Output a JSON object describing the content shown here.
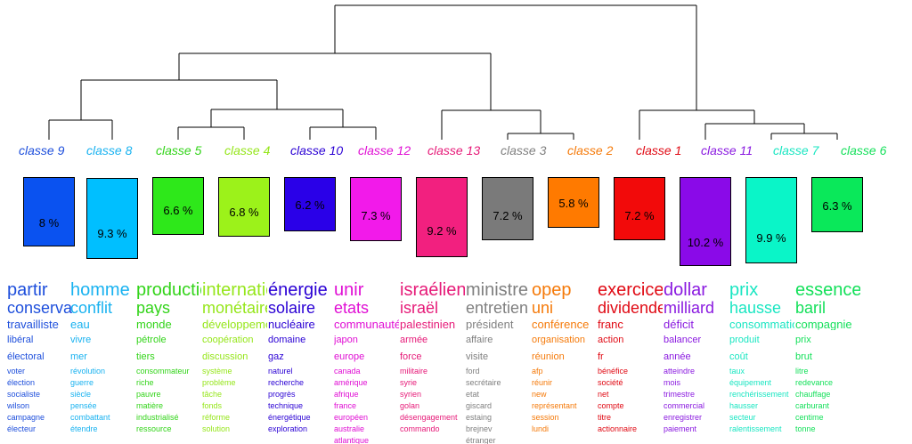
{
  "classes": [
    {
      "label": "classe  9",
      "color": "#1e4fdc",
      "percent": 8,
      "percent_label": "8 %",
      "bar_color": "#0a52f0",
      "words": [
        "partir",
        "conservateur",
        "travailliste",
        "libéral",
        "électoral",
        "voter",
        "élection",
        "socialiste",
        "wilson",
        "campagne",
        "électeur"
      ]
    },
    {
      "label": "classe  8",
      "color": "#19b2f0",
      "percent": 9.3,
      "percent_label": "9.3 %",
      "bar_color": "#00bfff",
      "words": [
        "homme",
        "conflit",
        "eau",
        "vivre",
        "mer",
        "révolution",
        "guerre",
        "siècle",
        "pensée",
        "combattant",
        "étendre"
      ]
    },
    {
      "label": "classe  5",
      "color": "#33d41a",
      "percent": 6.6,
      "percent_label": "6.6 %",
      "bar_color": "#2ee81a",
      "words": [
        "production",
        "pays",
        "monde",
        "pétrole",
        "tiers",
        "consommateur",
        "riche",
        "pauvre",
        "matière",
        "industrialisé",
        "ressource"
      ]
    },
    {
      "label": "classe  4",
      "color": "#95e61a",
      "percent": 6.8,
      "percent_label": "6.8 %",
      "bar_color": "#9cf21a",
      "words": [
        "international",
        "monétaire",
        "développement",
        "coopération",
        "discussion",
        "système",
        "problème",
        "tâche",
        "fonds",
        "réforme",
        "solution"
      ]
    },
    {
      "label": "classe  10",
      "color": "#2a00d4",
      "percent": 6.2,
      "percent_label": "6.2 %",
      "bar_color": "#2a00e8",
      "words": [
        "énergie",
        "solaire",
        "nucléaire",
        "domaine",
        "gaz",
        "naturel",
        "recherche",
        "progrès",
        "technique",
        "énergétique",
        "exploration"
      ]
    },
    {
      "label": "classe  12",
      "color": "#e00fd4",
      "percent": 7.3,
      "percent_label": "7.3 %",
      "bar_color": "#f21aea",
      "words": [
        "unir",
        "etats",
        "communauté",
        "japon",
        "europe",
        "canada",
        "amérique",
        "afrique",
        "france",
        "européen",
        "australie",
        "atlantique"
      ]
    },
    {
      "label": "classe  13",
      "color": "#e61a78",
      "percent": 9.2,
      "percent_label": "9.2 %",
      "bar_color": "#f2207f",
      "words": [
        "israélien",
        "israël",
        "palestinien",
        "armée",
        "force",
        "militaire",
        "syrie",
        "syrien",
        "golan",
        "désengagement",
        "commando"
      ]
    },
    {
      "label": "classe  3",
      "color": "#808080",
      "percent": 7.2,
      "percent_label": "7.2 %",
      "bar_color": "#7a7a7a",
      "words": [
        "ministre",
        "entretien",
        "président",
        "affaire",
        "visite",
        "ford",
        "secrétaire",
        "etat",
        "giscard",
        "estaing",
        "brejnev",
        "étranger"
      ]
    },
    {
      "label": "classe  2",
      "color": "#f57a0a",
      "percent": 5.8,
      "percent_label": "5.8 %",
      "bar_color": "#ff7a00",
      "words": [
        "opep",
        "uni",
        "conférence",
        "organisation",
        "réunion",
        "afp",
        "réunir",
        "new",
        "représentant",
        "session",
        "lundi"
      ]
    },
    {
      "label": "classe  1",
      "color": "#e00a14",
      "percent": 7.2,
      "percent_label": "7.2 %",
      "bar_color": "#f20a0a",
      "words": [
        "exercice",
        "dividende",
        "franc",
        "action",
        "fr",
        "bénéfice",
        "société",
        "net",
        "compte",
        "titre",
        "actionnaire"
      ]
    },
    {
      "label": "classe  11",
      "color": "#8a1ae0",
      "percent": 10.2,
      "percent_label": "10.2 %",
      "bar_color": "#8a0ae8",
      "words": [
        "dollar",
        "milliard",
        "déficit",
        "balancer",
        "année",
        "atteindre",
        "mois",
        "trimestre",
        "commercial",
        "enregistrer",
        "paiement"
      ]
    },
    {
      "label": "classe  7",
      "color": "#1ae6c2",
      "percent": 9.9,
      "percent_label": "9.9 %",
      "bar_color": "#0af5c8",
      "words": [
        "prix",
        "hausse",
        "consommation",
        "produit",
        "coût",
        "taux",
        "équipement",
        "renchérissement",
        "hausser",
        "secteur",
        "ralentissement"
      ]
    },
    {
      "label": "classe  6",
      "color": "#14e05a",
      "percent": 6.3,
      "percent_label": "6.3 %",
      "bar_color": "#0ae85a",
      "words": [
        "essence",
        "baril",
        "compagnie",
        "prix",
        "brut",
        "litre",
        "redevance",
        "chauffage",
        "carburant",
        "centime",
        "tonne"
      ]
    }
  ]
}
